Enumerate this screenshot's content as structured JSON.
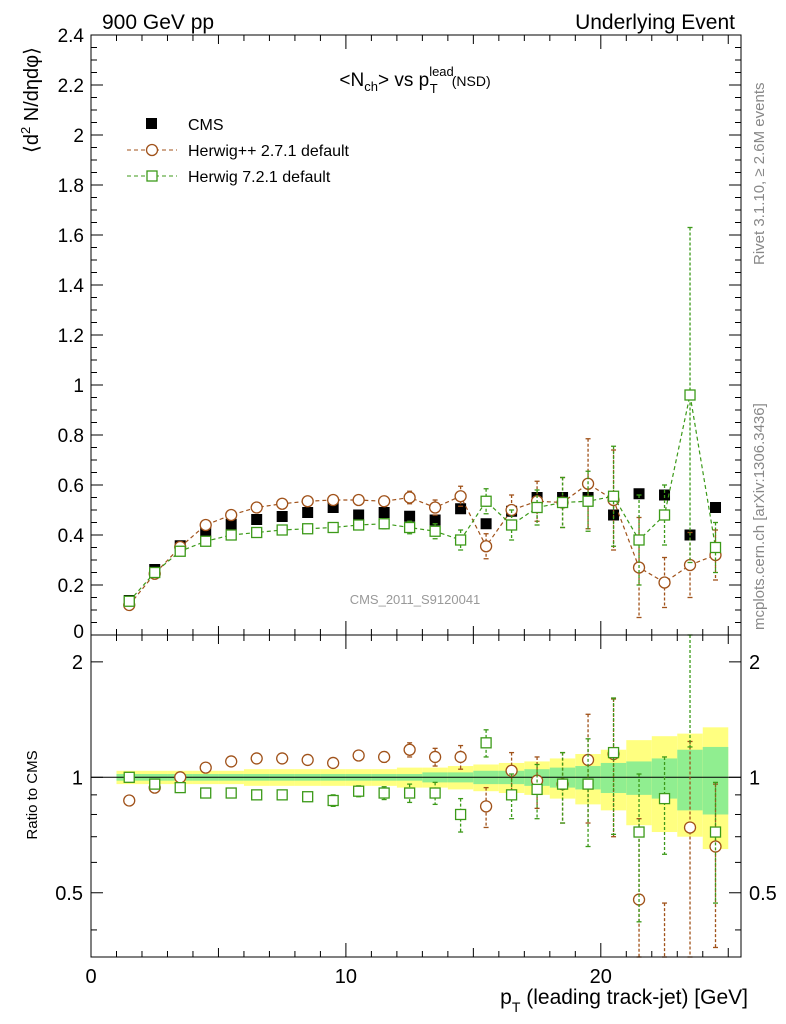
{
  "header": {
    "left": "900 GeV pp",
    "right": "Underlying Event",
    "side_rivet": "Rivet 3.1.10, ≥ 2.6M events",
    "side_mcplots": "mcplots.cern.ch [arXiv:1306.3436]",
    "watermark": "CMS_2011_S9120041"
  },
  "chart_data": [
    {
      "type": "scatter",
      "panel": "main",
      "title_parts": {
        "n": "<N",
        "n_sub": "ch",
        "vs": "> vs p",
        "p_sub": "T",
        "p_sup": "lead",
        "tail": "(NSD)"
      },
      "ylabel_parts": {
        "open": "⟨d",
        "sup": "2",
        "rest": " N/dηdφ⟩"
      },
      "ylim": [
        0,
        2.4
      ],
      "yticks": [
        "0",
        "0.2",
        "0.4",
        "0.6",
        "0.8",
        "1",
        "1.2",
        "1.4",
        "1.6",
        "1.8",
        "2",
        "2.2",
        "2.4"
      ],
      "xlim": [
        0,
        25.5
      ],
      "legend_position": "top-left",
      "series": [
        {
          "name": "CMS",
          "color": "#000000",
          "marker": "filled-square",
          "x": [
            1.5,
            2.5,
            3.5,
            4.5,
            5.5,
            6.5,
            7.5,
            8.5,
            9.5,
            10.5,
            11.5,
            12.5,
            13.5,
            14.5,
            15.5,
            16.5,
            17.5,
            18.5,
            19.5,
            20.5,
            21.5,
            22.5,
            23.5,
            24.5
          ],
          "y": [
            0.138,
            0.262,
            0.357,
            0.412,
            0.443,
            0.462,
            0.474,
            0.49,
            0.51,
            0.48,
            0.49,
            0.475,
            0.46,
            0.505,
            0.445,
            0.495,
            0.55,
            0.55,
            0.55,
            0.48,
            0.565,
            0.56,
            0.4,
            0.51
          ]
        },
        {
          "name": "Herwig++ 2.7.1 default",
          "color": "#a0521a",
          "marker": "open-circle",
          "linestyle": "dashed",
          "x": [
            1.5,
            2.5,
            3.5,
            4.5,
            5.5,
            6.5,
            7.5,
            8.5,
            9.5,
            10.5,
            11.5,
            12.5,
            13.5,
            14.5,
            15.5,
            16.5,
            17.5,
            18.5,
            19.5,
            20.5,
            21.5,
            22.5,
            23.5,
            24.5
          ],
          "y": [
            0.12,
            0.245,
            0.352,
            0.44,
            0.48,
            0.51,
            0.525,
            0.535,
            0.54,
            0.54,
            0.535,
            0.55,
            0.51,
            0.555,
            0.355,
            0.5,
            0.535,
            0.53,
            0.605,
            0.54,
            0.27,
            0.21,
            0.28,
            0.32
          ],
          "err": [
            0.005,
            0.008,
            0.01,
            0.01,
            0.012,
            0.012,
            0.014,
            0.015,
            0.016,
            0.018,
            0.02,
            0.025,
            0.03,
            0.04,
            0.05,
            0.06,
            0.08,
            0.1,
            0.18,
            0.2,
            0.2,
            0.1,
            0.13,
            0.1
          ]
        },
        {
          "name": "Herwig 7.2.1 default",
          "color": "#3c9a19",
          "marker": "open-square",
          "linestyle": "dashed",
          "x": [
            1.5,
            2.5,
            3.5,
            4.5,
            5.5,
            6.5,
            7.5,
            8.5,
            9.5,
            10.5,
            11.5,
            12.5,
            13.5,
            14.5,
            15.5,
            16.5,
            17.5,
            18.5,
            19.5,
            20.5,
            21.5,
            22.5,
            23.5,
            24.5
          ],
          "y": [
            0.135,
            0.25,
            0.335,
            0.375,
            0.4,
            0.41,
            0.42,
            0.425,
            0.43,
            0.44,
            0.445,
            0.43,
            0.415,
            0.38,
            0.535,
            0.44,
            0.51,
            0.53,
            0.535,
            0.555,
            0.38,
            0.48,
            0.96,
            0.35
          ],
          "err": [
            0.005,
            0.007,
            0.009,
            0.01,
            0.011,
            0.012,
            0.013,
            0.014,
            0.015,
            0.017,
            0.02,
            0.025,
            0.03,
            0.04,
            0.05,
            0.06,
            0.07,
            0.1,
            0.12,
            0.2,
            0.18,
            0.12,
            0.67,
            0.1
          ]
        }
      ]
    },
    {
      "type": "scatter",
      "panel": "ratio",
      "ylabel": "Ratio to CMS",
      "ylog": true,
      "ylim": [
        0.34,
        2.35
      ],
      "yticks": [
        0.5,
        1,
        2
      ],
      "ytick_labels": [
        "0.5",
        "1",
        "2"
      ],
      "xlim": [
        0,
        25.5
      ],
      "xticks": [
        0,
        10,
        20
      ],
      "xtick_labels": [
        "0",
        "10",
        "20"
      ],
      "xlabel_parts": {
        "p": "p",
        "sub": "T",
        "rest": " (leading track-jet) [GeV]"
      },
      "band_colors": {
        "stat": "#90ee90",
        "total": "#ffff80"
      },
      "bands": {
        "x_edges": [
          1,
          2,
          3,
          4,
          5,
          6,
          7,
          8,
          9,
          10,
          11,
          12,
          13,
          14,
          15,
          16,
          17,
          18,
          19,
          20,
          21,
          22,
          23,
          24,
          25
        ],
        "stat": [
          0.02,
          0.02,
          0.02,
          0.02,
          0.02,
          0.02,
          0.02,
          0.02,
          0.02,
          0.02,
          0.02,
          0.02,
          0.03,
          0.03,
          0.04,
          0.04,
          0.05,
          0.06,
          0.07,
          0.09,
          0.1,
          0.12,
          0.18,
          0.2
        ],
        "total": [
          0.04,
          0.04,
          0.04,
          0.04,
          0.04,
          0.05,
          0.05,
          0.05,
          0.05,
          0.05,
          0.05,
          0.06,
          0.06,
          0.07,
          0.08,
          0.09,
          0.1,
          0.12,
          0.15,
          0.18,
          0.25,
          0.28,
          0.3,
          0.35
        ]
      },
      "series": [
        {
          "name": "Herwig++ 2.7.1 default",
          "color": "#a0521a",
          "marker": "open-circle",
          "x": [
            1.5,
            2.5,
            3.5,
            4.5,
            5.5,
            6.5,
            7.5,
            8.5,
            9.5,
            10.5,
            11.5,
            12.5,
            13.5,
            14.5,
            15.5,
            16.5,
            17.5,
            18.5,
            19.5,
            20.5,
            21.5,
            22.5,
            23.5,
            24.5
          ],
          "y": [
            0.87,
            0.94,
            1.0,
            1.06,
            1.1,
            1.12,
            1.12,
            1.11,
            1.09,
            1.14,
            1.13,
            1.18,
            1.13,
            1.13,
            0.84,
            1.04,
            0.98,
            0.96,
            1.11,
            1.15,
            0.48,
            0.32,
            0.74,
            0.66
          ],
          "err": [
            0.01,
            0.01,
            0.01,
            0.01,
            0.015,
            0.02,
            0.02,
            0.025,
            0.03,
            0.03,
            0.035,
            0.05,
            0.06,
            0.08,
            0.1,
            0.12,
            0.15,
            0.2,
            0.35,
            0.45,
            0.3,
            0.15,
            0.5,
            0.3
          ]
        },
        {
          "name": "Herwig 7.2.1 default",
          "color": "#3c9a19",
          "marker": "open-square",
          "x": [
            1.5,
            2.5,
            3.5,
            4.5,
            5.5,
            6.5,
            7.5,
            8.5,
            9.5,
            10.5,
            11.5,
            12.5,
            13.5,
            14.5,
            15.5,
            16.5,
            17.5,
            18.5,
            19.5,
            20.5,
            21.5,
            22.5,
            23.5,
            24.5
          ],
          "y": [
            1.0,
            0.96,
            0.94,
            0.91,
            0.91,
            0.9,
            0.9,
            0.89,
            0.87,
            0.92,
            0.91,
            0.91,
            0.91,
            0.8,
            1.23,
            0.9,
            0.93,
            0.96,
            0.96,
            1.16,
            0.72,
            0.88,
            2.4,
            0.72
          ],
          "err": [
            0.01,
            0.01,
            0.01,
            0.01,
            0.015,
            0.02,
            0.02,
            0.025,
            0.03,
            0.03,
            0.035,
            0.05,
            0.06,
            0.08,
            0.1,
            0.12,
            0.15,
            0.2,
            0.3,
            0.45,
            0.3,
            0.25,
            1.2,
            0.25
          ]
        }
      ]
    }
  ]
}
